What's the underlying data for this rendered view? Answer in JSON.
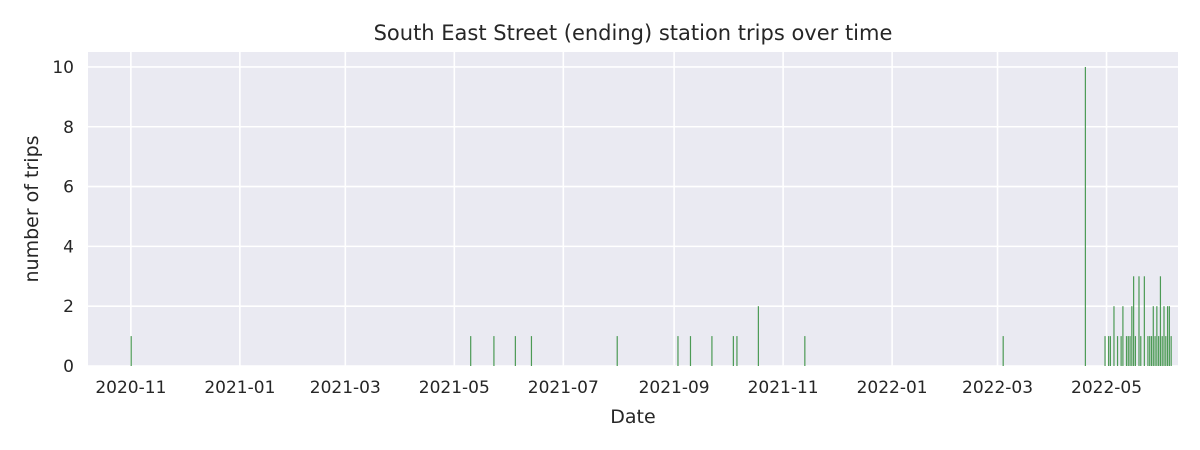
{
  "chart_data": {
    "type": "bar",
    "title": "South East Street (ending) station trips over time",
    "xlabel": "Date",
    "ylabel": "number of trips",
    "xlim": [
      "2020-10-08",
      "2022-06-10"
    ],
    "ylim": [
      0,
      10.5
    ],
    "x_ticks": [
      "2020-11",
      "2021-01",
      "2021-03",
      "2021-05",
      "2021-07",
      "2021-09",
      "2021-11",
      "2022-01",
      "2022-03",
      "2022-05"
    ],
    "y_ticks": [
      0,
      2,
      4,
      6,
      8,
      10
    ],
    "grid": true,
    "bar_color": "#4c9a55",
    "background_color": "#eaeaf2",
    "x": [
      "2020-11-01",
      "2021-05-10",
      "2021-05-23",
      "2021-06-04",
      "2021-06-13",
      "2021-07-31",
      "2021-09-03",
      "2021-09-10",
      "2021-09-22",
      "2021-10-04",
      "2021-10-06",
      "2021-10-18",
      "2021-11-13",
      "2022-03-04",
      "2022-04-19",
      "2022-04-30",
      "2022-05-02",
      "2022-05-03",
      "2022-05-05",
      "2022-05-07",
      "2022-05-09",
      "2022-05-10",
      "2022-05-12",
      "2022-05-13",
      "2022-05-14",
      "2022-05-15",
      "2022-05-16",
      "2022-05-17",
      "2022-05-19",
      "2022-05-20",
      "2022-05-22",
      "2022-05-24",
      "2022-05-25",
      "2022-05-26",
      "2022-05-27",
      "2022-05-28",
      "2022-05-29",
      "2022-05-30",
      "2022-05-31",
      "2022-06-01",
      "2022-06-02",
      "2022-06-03",
      "2022-06-04",
      "2022-06-05",
      "2022-06-06"
    ],
    "values": [
      1,
      1,
      1,
      1,
      1,
      1,
      1,
      1,
      1,
      1,
      1,
      2,
      1,
      1,
      10,
      1,
      1,
      1,
      2,
      1,
      1,
      2,
      1,
      1,
      1,
      2,
      3,
      1,
      3,
      1,
      3,
      1,
      1,
      1,
      2,
      1,
      2,
      1,
      3,
      1,
      2,
      1,
      2,
      2,
      1
    ]
  }
}
